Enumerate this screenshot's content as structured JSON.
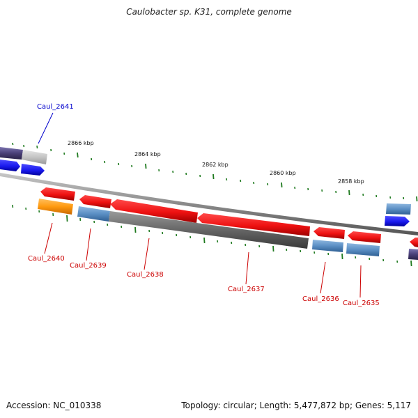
{
  "title": "Caulobacter sp. K31, complete genome",
  "footer": {
    "accession": "Accession: NC_010338",
    "summary": "Topology: circular; Length: 5,477,872 bp; Genes: 5,117"
  },
  "scale_labels": [
    "2866 kbp",
    "2864 kbp",
    "2862 kbp",
    "2860 kbp",
    "2858 kbp"
  ],
  "gene_labels": [
    {
      "text": "Caul_2641",
      "color": "#0000cc"
    },
    {
      "text": "Caul_2640",
      "color": "#cc0000"
    },
    {
      "text": "Caul_2639",
      "color": "#cc0000"
    },
    {
      "text": "Caul_2638",
      "color": "#cc0000"
    },
    {
      "text": "Caul_2637",
      "color": "#cc0000"
    },
    {
      "text": "Caul_2636",
      "color": "#cc0000"
    },
    {
      "text": "Caul_2635",
      "color": "#cc0000"
    }
  ],
  "colors": {
    "forward_cds": "#1a1aee",
    "reverse_cds": "#ee1111",
    "rna_gene": "#5b8fc4",
    "pseudo_gene": "#ff9a10",
    "gc_skew_dark": "#4a4078",
    "tick": "#1f7a1f",
    "backbone": "#8a8a8a"
  }
}
